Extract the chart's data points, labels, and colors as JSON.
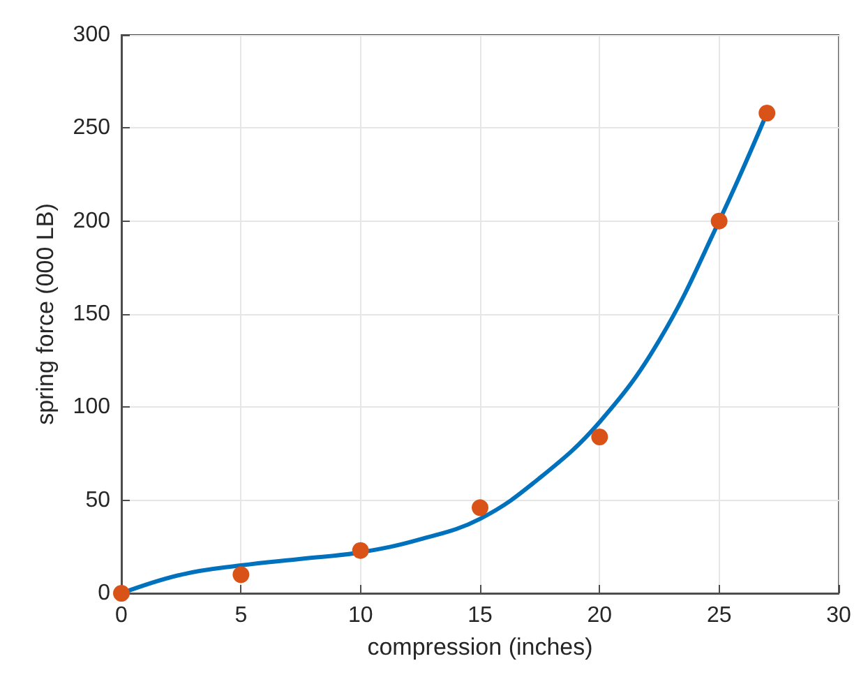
{
  "chart_data": {
    "type": "scatter",
    "xlabel": "compression (inches)",
    "ylabel": "spring force (000 LB)",
    "xlim": [
      0,
      30
    ],
    "xticks": [
      0,
      5,
      10,
      15,
      20,
      25,
      30
    ],
    "ylim": [
      0,
      300
    ],
    "yticks": [
      0,
      50,
      100,
      150,
      200,
      250,
      300
    ],
    "grid": true,
    "series": [
      {
        "type": "line",
        "color": "#0072bd",
        "marker": "none",
        "x": [
          0,
          2.5,
          5,
          7.5,
          10,
          12.5,
          15,
          17.5,
          20,
          22.5,
          25,
          27
        ],
        "values": [
          0,
          10,
          15,
          18.5,
          22,
          29,
          40,
          62,
          92,
          136,
          200,
          258
        ]
      },
      {
        "color": "#d95319",
        "marker": "circle",
        "x": [
          0,
          5,
          10,
          15,
          20,
          25,
          27
        ],
        "values": [
          0,
          10,
          23,
          46,
          84,
          200,
          258
        ]
      }
    ]
  }
}
